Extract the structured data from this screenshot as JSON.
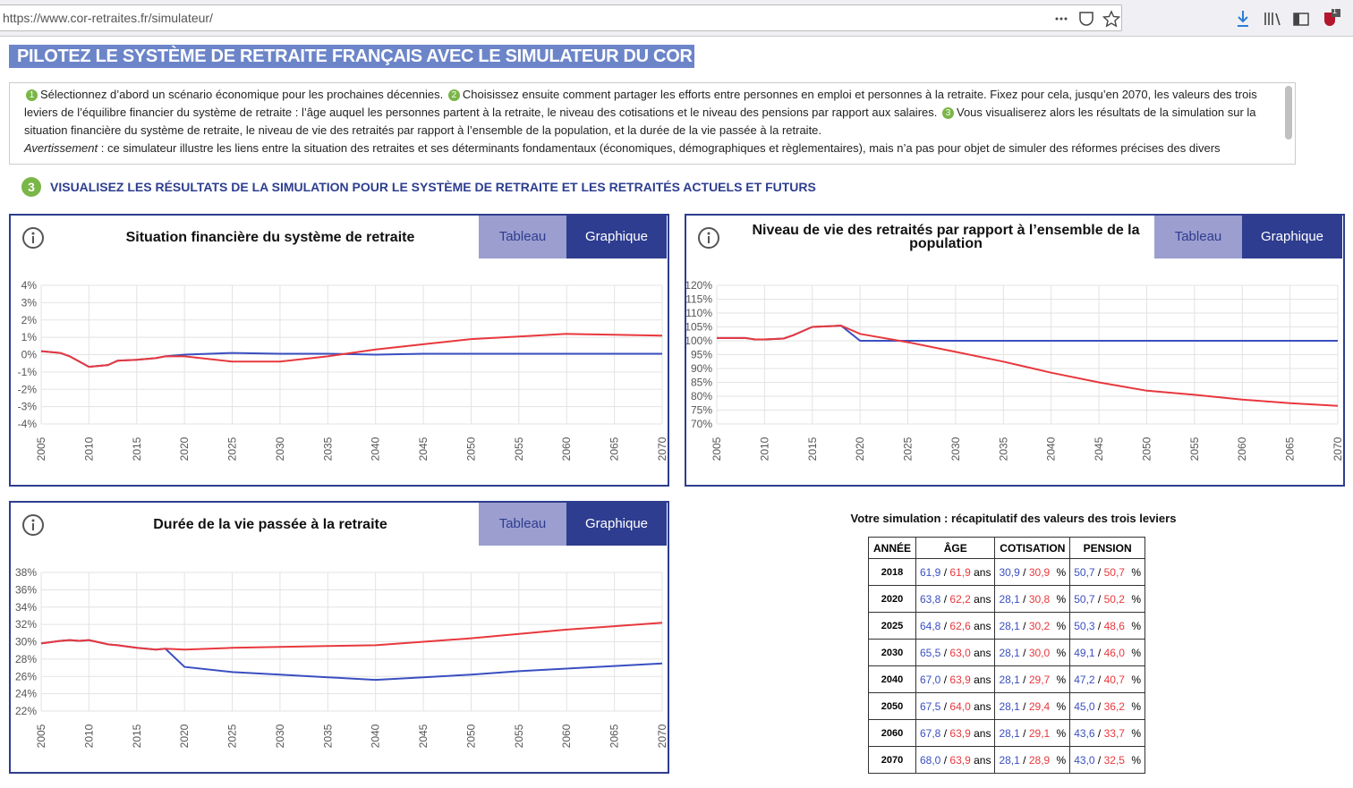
{
  "browser": {
    "url": "https://www.cor-retraites.fr/simulateur/",
    "badge": "1"
  },
  "header": {
    "title": "PILOTEZ LE SYSTÈME DE RETRAITE FRANÇAIS AVEC LE SIMULATEUR DU COR"
  },
  "intro": {
    "steps": [
      {
        "num": "1",
        "text": "Sélectionnez d’abord un scénario économique pour les prochaines décennies."
      },
      {
        "num": "2",
        "text": "Choisissez ensuite comment partager les efforts entre personnes en emploi et personnes à la retraite. Fixez pour cela, jusqu’en 2070, les valeurs des trois leviers de l’équilibre financier du système de retraite : l’âge auquel les personnes partent à la retraite, le niveau des cotisations et le niveau des pensions par rapport aux salaires."
      },
      {
        "num": "3",
        "text": "Vous visualiserez alors les résultats de la simulation sur la situation financière du système de retraite, le niveau de vie des retraités par rapport à l’ensemble de la population, et la durée de la vie passée à la retraite."
      }
    ],
    "warning_label": "Avertissement",
    "warning_text": ": ce simulateur illustre les liens entre la situation des retraites et ses déterminants fondamentaux (économiques, démographiques et règlementaires), mais n’a pas pour objet de simuler des réformes précises des divers"
  },
  "section": {
    "num": "3",
    "title": "VISUALISEZ LES RÉSULTATS DE LA SIMULATION POUR LE SYSTÈME DE RETRAITE ET LES RETRAITÉS ACTUELS ET FUTURS"
  },
  "chart_data": [
    {
      "type": "line",
      "title": "Situation financière du système de retraite",
      "tabs": [
        "Tableau",
        "Graphique"
      ],
      "x": [
        2005,
        2007,
        2008,
        2009,
        2010,
        2012,
        2013,
        2015,
        2017,
        2018,
        2020,
        2025,
        2030,
        2035,
        2040,
        2045,
        2050,
        2055,
        2060,
        2065,
        2070
      ],
      "xlim": [
        2005,
        2070
      ],
      "xticks": [
        2005,
        2010,
        2015,
        2020,
        2025,
        2030,
        2035,
        2040,
        2045,
        2050,
        2055,
        2060,
        2065,
        2070
      ],
      "ylim": [
        -4,
        4
      ],
      "yticks": [
        {
          "value": -4,
          "label": "-4%"
        },
        {
          "value": -3,
          "label": "-3%"
        },
        {
          "value": -2,
          "label": "-2%"
        },
        {
          "value": -1,
          "label": "-1%"
        },
        {
          "value": 0,
          "label": "0%"
        },
        {
          "value": 1,
          "label": "1%"
        },
        {
          "value": 2,
          "label": "2%"
        },
        {
          "value": 3,
          "label": "3%"
        },
        {
          "value": 4,
          "label": "4%"
        }
      ],
      "grid": true,
      "series": [
        {
          "color": "#3a4fc0",
          "values": [
            0.2,
            0.1,
            -0.1,
            -0.4,
            -0.7,
            -0.6,
            -0.35,
            -0.3,
            -0.2,
            -0.1,
            0,
            0.1,
            0.05,
            0.05,
            0,
            0.05,
            0.05,
            0.05,
            0.05,
            0.05,
            0.05
          ]
        },
        {
          "color": "#e8383d",
          "values": [
            0.2,
            0.1,
            -0.1,
            -0.4,
            -0.7,
            -0.6,
            -0.35,
            -0.3,
            -0.2,
            -0.1,
            -0.1,
            -0.4,
            -0.4,
            -0.1,
            0.3,
            0.6,
            0.9,
            1.05,
            1.2,
            1.15,
            1.1
          ]
        }
      ]
    },
    {
      "type": "line",
      "title": "Niveau de vie des retraités par rapport à l’ensemble de la population",
      "tabs": [
        "Tableau",
        "Graphique"
      ],
      "x": [
        2005,
        2007,
        2008,
        2009,
        2010,
        2012,
        2013,
        2015,
        2017,
        2018,
        2020,
        2025,
        2030,
        2035,
        2040,
        2045,
        2050,
        2055,
        2060,
        2065,
        2070
      ],
      "xlim": [
        2005,
        2070
      ],
      "xticks": [
        2005,
        2010,
        2015,
        2020,
        2025,
        2030,
        2035,
        2040,
        2045,
        2050,
        2055,
        2060,
        2065,
        2070
      ],
      "ylim": [
        70,
        120
      ],
      "yticks": [
        {
          "value": 70,
          "label": "70%"
        },
        {
          "value": 75,
          "label": "75%"
        },
        {
          "value": 80,
          "label": "80%"
        },
        {
          "value": 85,
          "label": "85%"
        },
        {
          "value": 90,
          "label": "90%"
        },
        {
          "value": 95,
          "label": "95%"
        },
        {
          "value": 100,
          "label": "100%"
        },
        {
          "value": 105,
          "label": "105%"
        },
        {
          "value": 110,
          "label": "110%"
        },
        {
          "value": 115,
          "label": "115%"
        },
        {
          "value": 120,
          "label": "120%"
        }
      ],
      "grid": true,
      "series": [
        {
          "color": "#3a4fc0",
          "values": [
            101,
            101,
            101,
            100.5,
            100.5,
            100.8,
            102,
            105,
            105.3,
            105.5,
            100,
            100,
            100,
            100,
            100,
            100,
            100,
            100,
            100,
            100,
            100
          ]
        },
        {
          "color": "#e8383d",
          "values": [
            101,
            101,
            101,
            100.5,
            100.5,
            100.8,
            102,
            105,
            105.3,
            105.5,
            102.5,
            99.5,
            96,
            92.5,
            88.5,
            85,
            82,
            80.5,
            78.8,
            77.5,
            76.5
          ]
        }
      ]
    },
    {
      "type": "line",
      "title": "Durée de la vie passée à la retraite",
      "tabs": [
        "Tableau",
        "Graphique"
      ],
      "x": [
        2005,
        2007,
        2008,
        2009,
        2010,
        2012,
        2013,
        2015,
        2017,
        2018,
        2020,
        2025,
        2030,
        2035,
        2040,
        2045,
        2050,
        2055,
        2060,
        2065,
        2070
      ],
      "xlim": [
        2005,
        2070
      ],
      "xticks": [
        2005,
        2010,
        2015,
        2020,
        2025,
        2030,
        2035,
        2040,
        2045,
        2050,
        2055,
        2060,
        2065,
        2070
      ],
      "ylim": [
        22,
        38
      ],
      "yticks": [
        {
          "value": 22,
          "label": "22%"
        },
        {
          "value": 24,
          "label": "24%"
        },
        {
          "value": 26,
          "label": "26%"
        },
        {
          "value": 28,
          "label": "28%"
        },
        {
          "value": 30,
          "label": "30%"
        },
        {
          "value": 32,
          "label": "32%"
        },
        {
          "value": 34,
          "label": "34%"
        },
        {
          "value": 36,
          "label": "36%"
        },
        {
          "value": 38,
          "label": "38%"
        }
      ],
      "grid": true,
      "series": [
        {
          "color": "#3a4fc0",
          "values": [
            29.8,
            30.1,
            30.2,
            30.1,
            30.2,
            29.7,
            29.6,
            29.3,
            29.1,
            29.2,
            27.1,
            26.5,
            26.2,
            25.9,
            25.6,
            25.9,
            26.2,
            26.6,
            26.9,
            27.2,
            27.5
          ]
        },
        {
          "color": "#e8383d",
          "values": [
            29.8,
            30.1,
            30.2,
            30.1,
            30.2,
            29.7,
            29.6,
            29.3,
            29.1,
            29.2,
            29.1,
            29.3,
            29.4,
            29.5,
            29.6,
            30.0,
            30.4,
            30.9,
            31.4,
            31.8,
            32.2
          ]
        }
      ]
    }
  ],
  "table": {
    "title": "Votre simulation : récapitulatif des valeurs des trois leviers",
    "columns": [
      "ANNÉE",
      "ÂGE",
      "COTISATION",
      "PENSION"
    ],
    "separator": "/",
    "units": [
      "ans",
      "%",
      "%"
    ],
    "rows": [
      [
        "2018",
        "61,9",
        "61,9",
        "30,9",
        "30,9",
        "50,7",
        "50,7"
      ],
      [
        "2020",
        "63,8",
        "62,2",
        "28,1",
        "30,8",
        "50,7",
        "50,2"
      ],
      [
        "2025",
        "64,8",
        "62,6",
        "28,1",
        "30,2",
        "50,3",
        "48,6"
      ],
      [
        "2030",
        "65,5",
        "63,0",
        "28,1",
        "30,0",
        "49,1",
        "46,0"
      ],
      [
        "2040",
        "67,0",
        "63,9",
        "28,1",
        "29,7",
        "47,2",
        "40,7"
      ],
      [
        "2050",
        "67,5",
        "64,0",
        "28,1",
        "29,4",
        "45,0",
        "36,2"
      ],
      [
        "2060",
        "67,8",
        "63,9",
        "28,1",
        "29,1",
        "43,6",
        "33,7"
      ],
      [
        "2070",
        "68,0",
        "63,9",
        "28,1",
        "28,9",
        "43,0",
        "32,5"
      ]
    ]
  }
}
